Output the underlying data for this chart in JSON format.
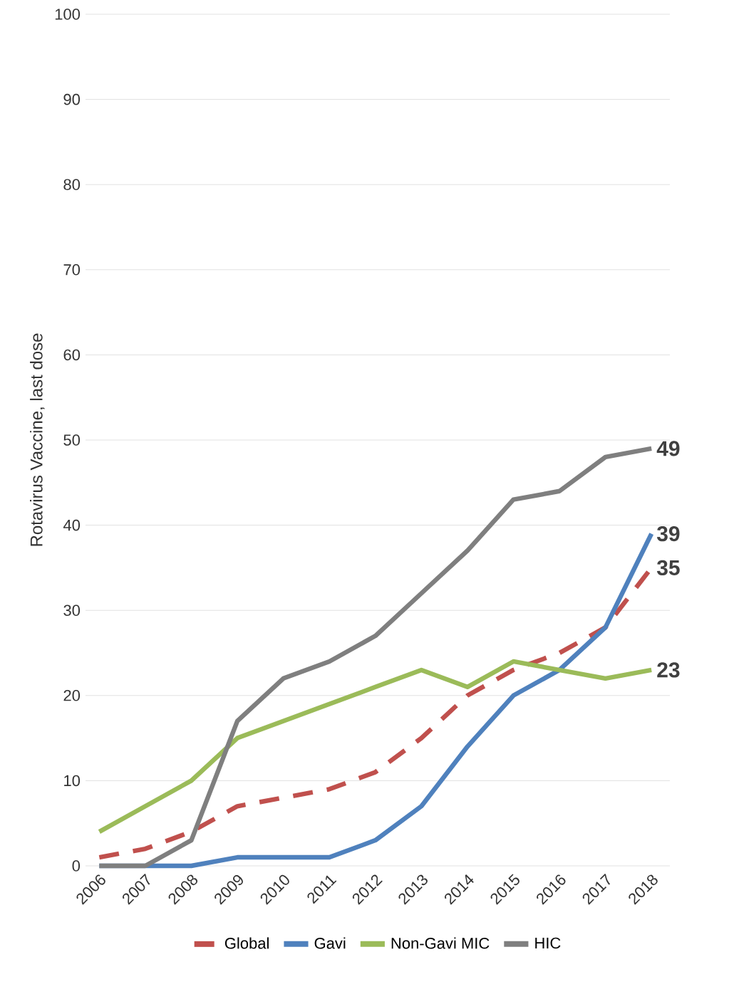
{
  "chart_data": {
    "type": "line",
    "ylabel": "Rotavirus Vaccine, last dose",
    "categories": [
      "2006",
      "2007",
      "2008",
      "2009",
      "2010",
      "2011",
      "2012",
      "2013",
      "2014",
      "2015",
      "2016",
      "2017",
      "2018"
    ],
    "ylim": [
      0,
      100
    ],
    "yticks": [
      0,
      10,
      20,
      30,
      40,
      50,
      60,
      70,
      80,
      90,
      100
    ],
    "grid": "y",
    "legend": "bottom",
    "marker": "none",
    "series": [
      {
        "name": "Global",
        "color": "#c0504d",
        "line_style": "dashed",
        "values": [
          1,
          2,
          4,
          7,
          8,
          9,
          11,
          15,
          20,
          23,
          25,
          28,
          35
        ],
        "value_labels": [
          null,
          null,
          null,
          null,
          null,
          null,
          null,
          null,
          null,
          null,
          null,
          null,
          "35"
        ]
      },
      {
        "name": "Gavi",
        "color": "#4f81bd",
        "line_style": "solid",
        "values": [
          0,
          0,
          0,
          1,
          1,
          1,
          3,
          7,
          14,
          20,
          23,
          28,
          39
        ],
        "value_labels": [
          null,
          null,
          null,
          null,
          null,
          null,
          null,
          null,
          null,
          null,
          null,
          null,
          "39"
        ]
      },
      {
        "name": "Non-Gavi MIC",
        "color": "#9bbb59",
        "line_style": "solid",
        "values": [
          4,
          7,
          10,
          15,
          17,
          19,
          21,
          23,
          21,
          24,
          23,
          22,
          23
        ],
        "value_labels": [
          null,
          null,
          null,
          null,
          null,
          null,
          null,
          null,
          null,
          null,
          null,
          null,
          "23"
        ]
      },
      {
        "name": "HIC",
        "color": "#7f7f7f",
        "line_style": "solid",
        "values": [
          0,
          0,
          3,
          17,
          22,
          24,
          27,
          32,
          37,
          43,
          44,
          48,
          49
        ],
        "value_labels": [
          null,
          null,
          null,
          null,
          null,
          null,
          null,
          null,
          null,
          null,
          null,
          null,
          "49"
        ]
      }
    ]
  }
}
